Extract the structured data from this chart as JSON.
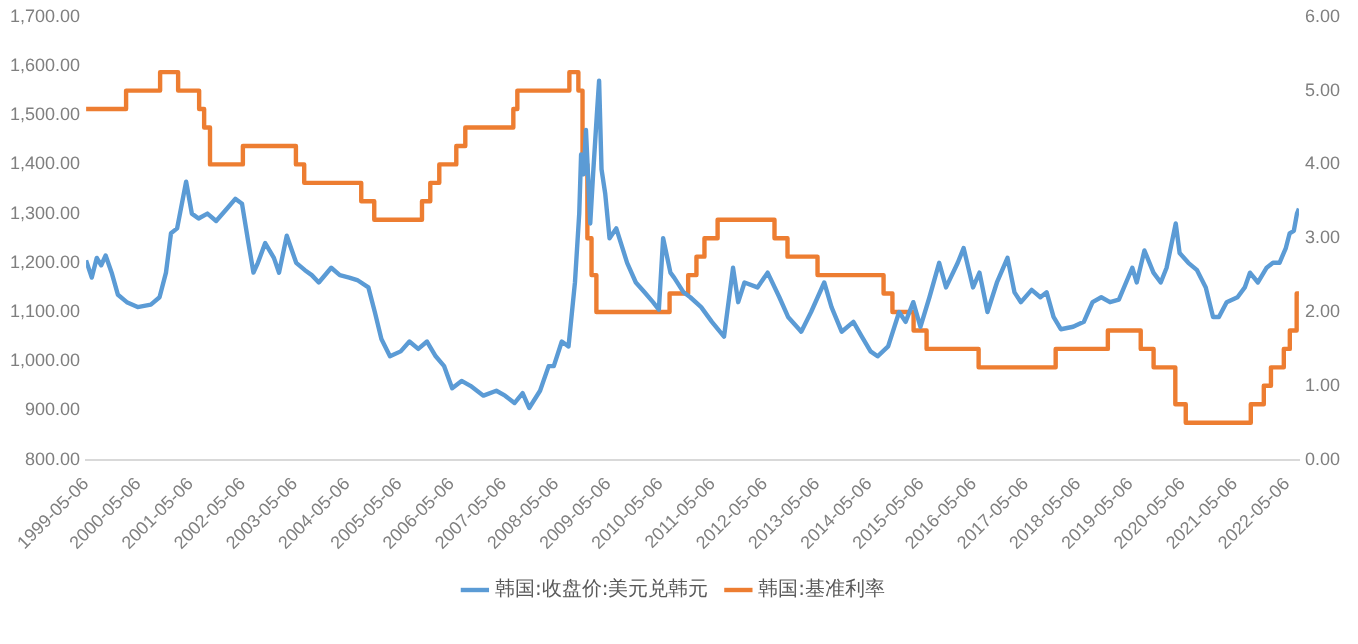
{
  "chart_data": {
    "type": "line",
    "legend": "bottom",
    "grid": false,
    "marker": "none",
    "xlim": [
      "1999-05-06",
      "2022-07-29"
    ],
    "xticks": [
      "1999-05-06",
      "2000-05-06",
      "2001-05-06",
      "2002-05-06",
      "2003-05-06",
      "2004-05-06",
      "2005-05-06",
      "2006-05-06",
      "2007-05-06",
      "2008-05-06",
      "2009-05-06",
      "2010-05-06",
      "2011-05-06",
      "2012-05-06",
      "2013-05-06",
      "2014-05-06",
      "2015-05-06",
      "2016-05-06",
      "2017-05-06",
      "2018-05-06",
      "2019-05-06",
      "2020-05-06",
      "2021-05-06",
      "2022-05-06"
    ],
    "ylim": [
      800,
      1700
    ],
    "yticks": [
      {
        "value": 800,
        "label": "800.00"
      },
      {
        "value": 900,
        "label": "900.00"
      },
      {
        "value": 1000,
        "label": "1,000.00"
      },
      {
        "value": 1100,
        "label": "1,100.00"
      },
      {
        "value": 1200,
        "label": "1,200.00"
      },
      {
        "value": 1300,
        "label": "1,300.00"
      },
      {
        "value": 1400,
        "label": "1,400.00"
      },
      {
        "value": 1500,
        "label": "1,500.00"
      },
      {
        "value": 1600,
        "label": "1,600.00"
      },
      {
        "value": 1700,
        "label": "1,700.00"
      }
    ],
    "y2lim": [
      0,
      6
    ],
    "y2ticks": [
      {
        "value": 0,
        "label": "0.00"
      },
      {
        "value": 1,
        "label": "1.00"
      },
      {
        "value": 2,
        "label": "2.00"
      },
      {
        "value": 3,
        "label": "3.00"
      },
      {
        "value": 4,
        "label": "4.00"
      },
      {
        "value": 5,
        "label": "5.00"
      },
      {
        "value": 6,
        "label": "6.00"
      }
    ],
    "series": [
      {
        "name": "韩国:收盘价:美元兑韩元",
        "color": "#5b9bd5",
        "type": "line",
        "x": [
          "1999-05-06",
          "1999-06-15",
          "1999-07-20",
          "1999-08-20",
          "1999-09-20",
          "1999-11-01",
          "1999-12-15",
          "2000-02-15",
          "2000-05-01",
          "2000-08-01",
          "2000-10-01",
          "2000-11-15",
          "2000-12-20",
          "2001-02-01",
          "2001-04-05",
          "2001-05-15",
          "2001-07-01",
          "2001-09-01",
          "2001-11-01",
          "2002-01-15",
          "2002-03-15",
          "2002-05-01",
          "2002-06-15",
          "2002-07-20",
          "2002-08-20",
          "2002-10-10",
          "2002-12-10",
          "2003-01-15",
          "2003-03-10",
          "2003-05-15",
          "2003-07-15",
          "2003-09-01",
          "2003-10-20",
          "2004-01-15",
          "2004-03-15",
          "2004-05-20",
          "2004-07-15",
          "2004-10-01",
          "2004-11-15",
          "2004-12-31",
          "2005-03-01",
          "2005-05-15",
          "2005-07-15",
          "2005-09-15",
          "2005-11-15",
          "2006-01-15",
          "2006-03-15",
          "2006-05-10",
          "2006-07-15",
          "2006-09-15",
          "2006-12-15",
          "2007-03-15",
          "2007-05-15",
          "2007-07-20",
          "2007-09-15",
          "2007-10-31",
          "2008-01-15",
          "2008-03-15",
          "2008-04-20",
          "2008-06-15",
          "2008-08-01",
          "2008-09-15",
          "2008-10-15",
          "2008-10-28",
          "2008-11-15",
          "2008-12-01",
          "2008-12-31",
          "2009-01-20",
          "2009-02-15",
          "2009-03-03",
          "2009-03-20",
          "2009-04-15",
          "2009-05-15",
          "2009-07-01",
          "2009-09-15",
          "2009-11-15",
          "2010-01-15",
          "2010-03-15",
          "2010-04-25",
          "2010-05-25",
          "2010-07-15",
          "2010-08-10",
          "2010-10-15",
          "2010-12-01",
          "2011-02-15",
          "2011-05-01",
          "2011-07-25",
          "2011-09-26",
          "2011-11-01",
          "2011-12-15",
          "2012-03-15",
          "2012-05-25",
          "2012-08-15",
          "2012-10-15",
          "2012-12-31",
          "2013-01-15",
          "2013-03-25",
          "2013-06-25",
          "2013-08-15",
          "2013-10-25",
          "2014-01-15",
          "2014-03-15",
          "2014-05-15",
          "2014-07-03",
          "2014-09-15",
          "2014-12-01",
          "2015-01-15",
          "2015-03-10",
          "2015-04-29",
          "2015-07-01",
          "2015-09-07",
          "2015-10-25",
          "2016-01-15",
          "2016-02-25",
          "2016-05-01",
          "2016-06-15",
          "2016-08-10",
          "2016-10-15",
          "2016-12-28",
          "2017-02-15",
          "2017-04-01",
          "2017-06-15",
          "2017-08-15",
          "2017-09-28",
          "2017-11-15",
          "2018-01-05",
          "2018-04-01",
          "2018-06-15",
          "2018-08-15",
          "2018-10-15",
          "2018-12-15",
          "2019-02-15",
          "2019-05-20",
          "2019-06-20",
          "2019-08-13",
          "2019-10-15",
          "2019-12-05",
          "2020-01-15",
          "2020-03-19",
          "2020-04-15",
          "2020-06-15",
          "2020-08-15",
          "2020-10-15",
          "2020-12-05",
          "2021-01-15",
          "2021-03-10",
          "2021-05-25",
          "2021-07-15",
          "2021-08-20",
          "2021-10-15",
          "2021-12-15",
          "2022-01-28",
          "2022-03-15",
          "2022-04-28",
          "2022-05-25",
          "2022-06-23",
          "2022-07-15",
          "2022-07-29"
        ],
        "values": [
          1205,
          1170,
          1210,
          1195,
          1215,
          1180,
          1135,
          1120,
          1110,
          1115,
          1130,
          1180,
          1260,
          1270,
          1365,
          1300,
          1290,
          1300,
          1285,
          1310,
          1330,
          1320,
          1240,
          1180,
          1200,
          1240,
          1210,
          1180,
          1255,
          1200,
          1185,
          1175,
          1160,
          1190,
          1175,
          1170,
          1165,
          1150,
          1100,
          1045,
          1010,
          1020,
          1040,
          1025,
          1040,
          1010,
          990,
          945,
          960,
          950,
          930,
          940,
          930,
          915,
          935,
          905,
          940,
          990,
          990,
          1040,
          1030,
          1160,
          1300,
          1420,
          1380,
          1470,
          1280,
          1380,
          1500,
          1570,
          1390,
          1340,
          1250,
          1270,
          1200,
          1160,
          1140,
          1120,
          1105,
          1250,
          1180,
          1170,
          1140,
          1130,
          1110,
          1080,
          1050,
          1190,
          1120,
          1160,
          1150,
          1180,
          1130,
          1090,
          1065,
          1060,
          1100,
          1160,
          1110,
          1060,
          1080,
          1050,
          1020,
          1010,
          1030,
          1100,
          1080,
          1120,
          1070,
          1130,
          1200,
          1150,
          1200,
          1230,
          1150,
          1180,
          1100,
          1160,
          1210,
          1140,
          1120,
          1145,
          1130,
          1140,
          1090,
          1065,
          1070,
          1080,
          1120,
          1130,
          1120,
          1125,
          1190,
          1160,
          1225,
          1180,
          1160,
          1190,
          1280,
          1220,
          1200,
          1185,
          1150,
          1090,
          1090,
          1120,
          1130,
          1150,
          1180,
          1160,
          1190,
          1200,
          1200,
          1230,
          1260,
          1265,
          1300,
          1310
        ]
      },
      {
        "name": "韩国:基准利率",
        "color": "#ed7d31",
        "type": "step",
        "axis": "y2",
        "x": [
          "1999-05-06",
          "2000-02-10",
          "2000-10-05",
          "2001-02-08",
          "2001-07-05",
          "2001-08-09",
          "2001-09-19",
          "2002-05-07",
          "2003-05-13",
          "2003-07-10",
          "2004-08-12",
          "2004-11-11",
          "2005-10-11",
          "2005-12-08",
          "2006-02-09",
          "2006-06-08",
          "2006-08-10",
          "2007-07-12",
          "2007-08-09",
          "2008-08-07",
          "2008-10-09",
          "2008-11-07",
          "2008-12-11",
          "2009-01-09",
          "2009-02-12",
          "2010-07-09",
          "2010-11-16",
          "2011-01-13",
          "2011-03-10",
          "2011-06-10",
          "2012-07-12",
          "2012-10-11",
          "2013-05-09",
          "2014-08-14",
          "2014-10-15",
          "2015-03-12",
          "2015-06-11",
          "2016-06-09",
          "2017-11-30",
          "2018-11-30",
          "2019-07-18",
          "2019-10-16",
          "2020-03-16",
          "2020-05-28",
          "2021-08-26",
          "2021-11-25",
          "2022-01-14",
          "2022-04-14",
          "2022-05-26",
          "2022-07-13",
          "2022-07-29"
        ],
        "values": [
          4.75,
          5.0,
          5.25,
          5.0,
          4.75,
          4.5,
          4.0,
          4.25,
          4.0,
          3.75,
          3.5,
          3.25,
          3.5,
          3.75,
          4.0,
          4.25,
          4.5,
          4.75,
          5.0,
          5.25,
          5.0,
          4.0,
          3.0,
          2.5,
          2.0,
          2.25,
          2.5,
          2.75,
          3.0,
          3.25,
          3.0,
          2.75,
          2.5,
          2.25,
          2.0,
          1.75,
          1.5,
          1.25,
          1.5,
          1.75,
          1.5,
          1.25,
          0.75,
          0.5,
          0.75,
          1.0,
          1.25,
          1.5,
          1.75,
          2.25,
          2.25
        ]
      }
    ]
  }
}
